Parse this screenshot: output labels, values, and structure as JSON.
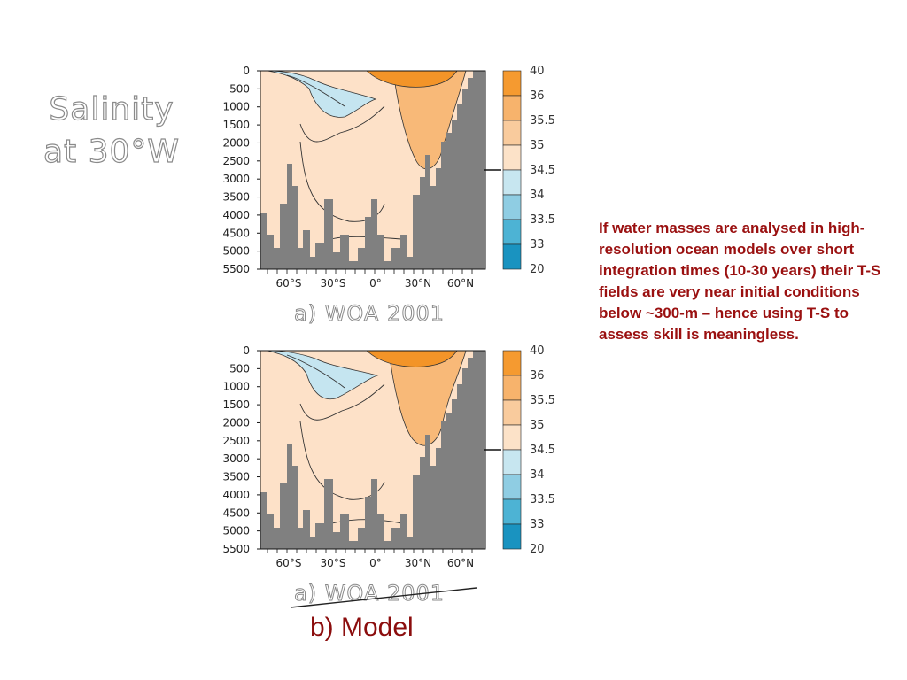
{
  "title": "Salinity at 30°W",
  "note": "If water masses are analysed in high-resolution ocean models over short integration times (10-30 years) their T-S fields are very near initial conditions below ~300-m – hence using T-S to assess skill is meaningless.",
  "panels": [
    {
      "caption": "a) WOA 2001"
    },
    {
      "caption_struck": "a) WOA 2001",
      "caption": "b) Model"
    }
  ],
  "axes": {
    "depth_labels": [
      "0",
      "500",
      "1000",
      "1500",
      "2000",
      "2500",
      "3000",
      "3500",
      "4000",
      "4500",
      "5000",
      "5500"
    ],
    "lat_labels": [
      "60°S",
      "30°S",
      "0°",
      "30°N",
      "60°N"
    ]
  },
  "colorbar": {
    "labels": [
      "40",
      "36",
      "35.5",
      "35",
      "34.5",
      "34",
      "33.5",
      "33",
      "20"
    ],
    "colors": [
      "#f59a30",
      "#f7b36c",
      "#f9cb9d",
      "#fce2c8",
      "#c7e6f0",
      "#8fcde3",
      "#4db3d4",
      "#1a93c0"
    ]
  },
  "colors": {
    "land": "#808080",
    "fresh": "#c5e5f0",
    "base": "#fde1c8",
    "salty_mid": "#f8b978",
    "salty_top": "#f39428",
    "note_text": "#9a1010",
    "model_label": "#8b0d0d"
  }
}
